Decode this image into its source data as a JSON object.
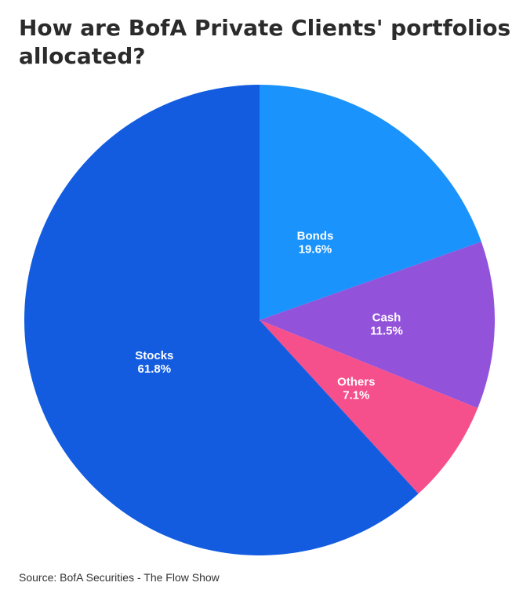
{
  "title": "How are BofA Private Clients' portfolios allocated?",
  "source": "Source: BofA Securities - The Flow Show",
  "chart_data": {
    "type": "pie",
    "title": "How are BofA Private Clients' portfolios allocated?",
    "start": "12 o'clock",
    "direction": "clockwise",
    "slices": [
      {
        "label": "Bonds",
        "value": 19.6,
        "display": "19.6%",
        "color": "#1a93fc"
      },
      {
        "label": "Cash",
        "value": 11.5,
        "display": "11.5%",
        "color": "#9352da"
      },
      {
        "label": "Others",
        "value": 7.1,
        "display": "7.1%",
        "color": "#f5508b"
      },
      {
        "label": "Stocks",
        "value": 61.8,
        "display": "61.8%",
        "color": "#135ce0"
      }
    ]
  }
}
